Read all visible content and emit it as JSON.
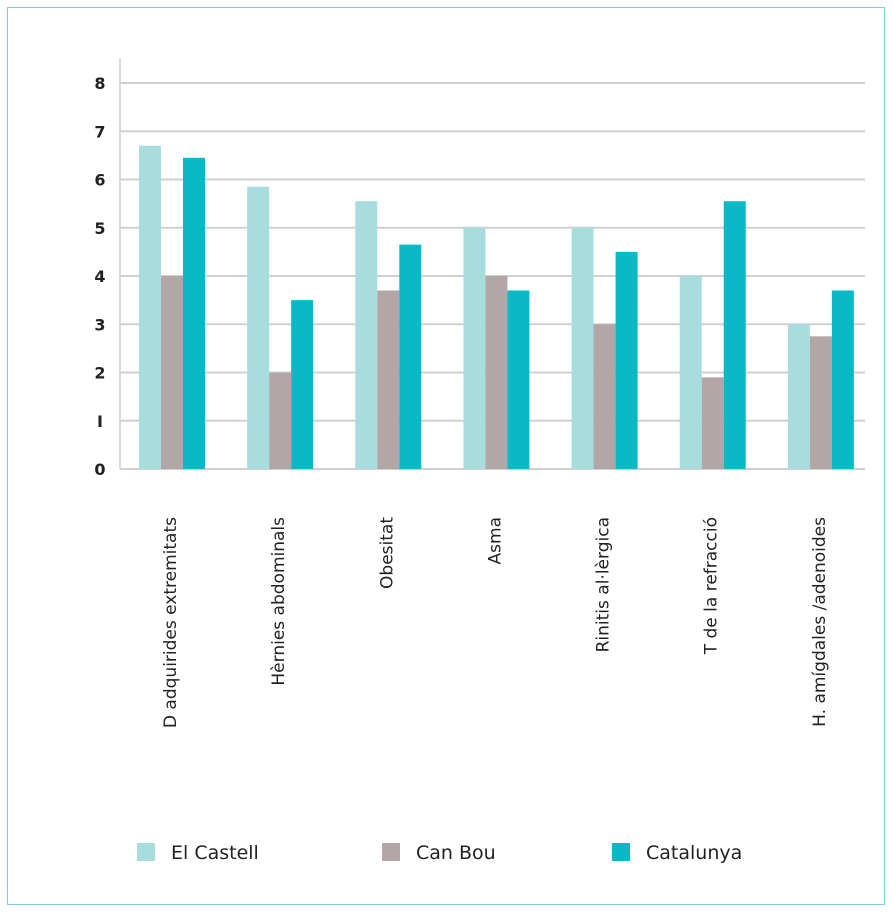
{
  "chart_data": {
    "type": "bar",
    "categories": [
      "D adquirides extremitats",
      "Hèrnies abdominals",
      "Obesitat",
      "Asma",
      "Rinitis al·lèrgica",
      "T de la refracció",
      "H. amígdales /adenoides"
    ],
    "series": [
      {
        "name": "El Castell",
        "color": "#a8dde0",
        "values": [
          6.7,
          5.85,
          5.55,
          5.0,
          5.0,
          4.0,
          3.0
        ]
      },
      {
        "name": "Can Bou",
        "color": "#b2a7a6",
        "values": [
          4.0,
          2.0,
          3.7,
          4.0,
          3.0,
          1.9,
          2.75
        ]
      },
      {
        "name": "Catalunya",
        "color": "#0ab8c6",
        "values": [
          6.45,
          3.5,
          4.65,
          3.7,
          4.5,
          5.55,
          3.7
        ]
      }
    ],
    "yticks": [
      "0",
      "I",
      "2",
      "3",
      "4",
      "5",
      "6",
      "7",
      "8"
    ],
    "ylim": [
      0,
      8
    ],
    "grid": true,
    "legend_position": "bottom"
  }
}
